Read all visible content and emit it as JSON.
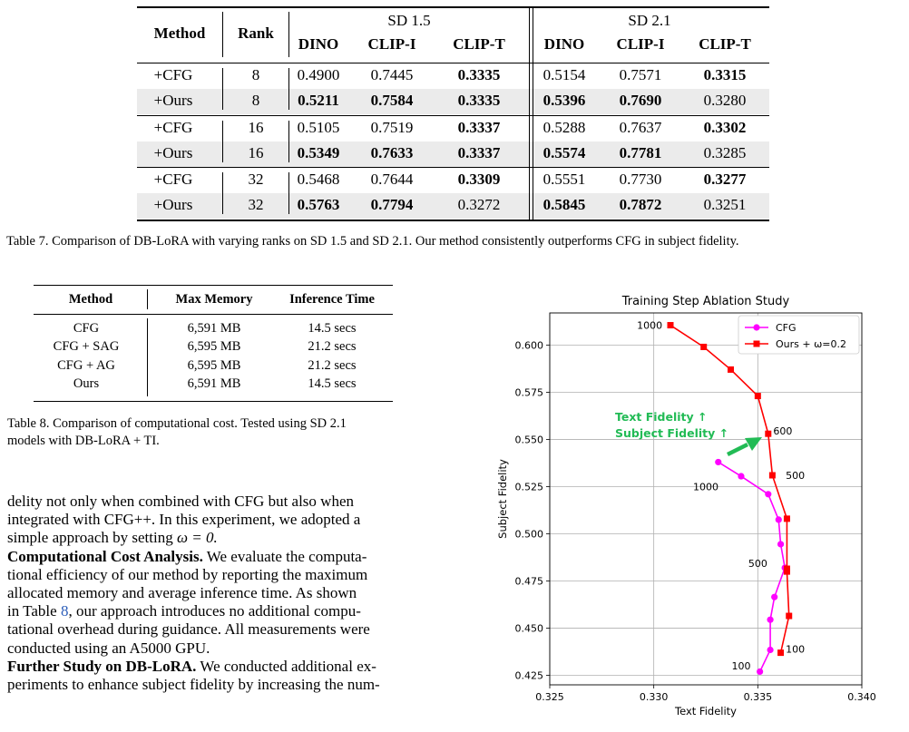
{
  "table7": {
    "headers": {
      "method": "Method",
      "rank": "Rank",
      "group1": "SD 1.5",
      "group2": "SD 2.1",
      "cols": [
        "DINO",
        "CLIP-I",
        "CLIP-T",
        "DINO",
        "CLIP-I",
        "CLIP-T"
      ]
    },
    "rows": [
      {
        "method": "+CFG",
        "rank": "8",
        "vals": [
          "0.4900",
          "0.7445",
          "0.3335",
          "0.5154",
          "0.7571",
          "0.3315"
        ],
        "bold": [
          false,
          false,
          true,
          false,
          false,
          true
        ]
      },
      {
        "method": "+Ours",
        "rank": "8",
        "vals": [
          "0.5211",
          "0.7584",
          "0.3335",
          "0.5396",
          "0.7690",
          "0.3280"
        ],
        "bold": [
          true,
          true,
          true,
          true,
          true,
          false
        ]
      },
      {
        "method": "+CFG",
        "rank": "16",
        "vals": [
          "0.5105",
          "0.7519",
          "0.3337",
          "0.5288",
          "0.7637",
          "0.3302"
        ],
        "bold": [
          false,
          false,
          true,
          false,
          false,
          true
        ]
      },
      {
        "method": "+Ours",
        "rank": "16",
        "vals": [
          "0.5349",
          "0.7633",
          "0.3337",
          "0.5574",
          "0.7781",
          "0.3285"
        ],
        "bold": [
          true,
          true,
          true,
          true,
          true,
          false
        ]
      },
      {
        "method": "+CFG",
        "rank": "32",
        "vals": [
          "0.5468",
          "0.7644",
          "0.3309",
          "0.5551",
          "0.7730",
          "0.3277"
        ],
        "bold": [
          false,
          false,
          true,
          false,
          false,
          true
        ]
      },
      {
        "method": "+Ours",
        "rank": "32",
        "vals": [
          "0.5763",
          "0.7794",
          "0.3272",
          "0.5845",
          "0.7872",
          "0.3251"
        ],
        "bold": [
          true,
          true,
          false,
          true,
          true,
          false
        ]
      }
    ],
    "caption": "Table 7. Comparison of DB-LoRA with varying ranks on SD 1.5 and SD 2.1. Our method consistently outperforms CFG in subject fidelity."
  },
  "table8": {
    "headers": [
      "Method",
      "Max Memory",
      "Inference Time"
    ],
    "rows": [
      [
        "CFG",
        "6,591 MB",
        "14.5 secs"
      ],
      [
        "CFG + SAG",
        "6,595 MB",
        "21.2 secs"
      ],
      [
        "CFG + AG",
        "6,595 MB",
        "21.2 secs"
      ],
      [
        "Ours",
        "6,591 MB",
        "14.5 secs"
      ]
    ],
    "caption_line1": "Table 8. Comparison of computational cost. Tested using SD 2.1",
    "caption_line2": "models with DB-LoRA + TI."
  },
  "body": {
    "p1_line1": "delity not only when combined with CFG but also when",
    "p1_line2": "integrated with CFG++. In this experiment, we adopted a",
    "p1_line3_a": "simple approach by setting ",
    "p1_line3_math": "ω = 0.",
    "p2_runin": "Computational Cost Analysis.",
    "p2_line1_rest": " We evaluate the computa-",
    "p2_line2": "tional efficiency of our method by reporting the maximum",
    "p2_line3": "allocated memory and average inference time. As shown",
    "p2_line4_a": "in Table ",
    "p2_line4_ref": "8",
    "p2_line4_b": ", our approach introduces no additional compu-",
    "p2_line5": "tational overhead during guidance. All measurements were",
    "p2_line6": "conducted using an A5000 GPU.",
    "p3_runin": "Further Study on DB-LoRA.",
    "p3_line1_rest": " We conducted additional ex-",
    "p3_line2": "periments to enhance subject fidelity by increasing the num-"
  },
  "chart_data": {
    "type": "line",
    "title": "Training Step Ablation Study",
    "xlabel": "Text Fidelity",
    "ylabel": "Subject Fidelity",
    "xlim": [
      0.325,
      0.34
    ],
    "ylim": [
      0.42,
      0.617
    ],
    "xticks": [
      "0.325",
      "0.330",
      "0.335",
      "0.340"
    ],
    "xtick_values": [
      0.325,
      0.33,
      0.335,
      0.34
    ],
    "yticks": [
      "0.425",
      "0.450",
      "0.475",
      "0.500",
      "0.525",
      "0.550",
      "0.575",
      "0.600"
    ],
    "ytick_values": [
      0.425,
      0.45,
      0.475,
      0.5,
      0.525,
      0.55,
      0.575,
      0.6
    ],
    "grid": true,
    "legend_position": "top-right",
    "series": [
      {
        "name": "CFG",
        "color": "#ff00ff",
        "marker": "circle",
        "points": [
          [
            0.3351,
            0.427
          ],
          [
            0.3356,
            0.4385
          ],
          [
            0.3356,
            0.4545
          ],
          [
            0.3358,
            0.4665
          ],
          [
            0.3363,
            0.482
          ],
          [
            0.3361,
            0.4945
          ],
          [
            0.336,
            0.5075
          ],
          [
            0.3355,
            0.521
          ],
          [
            0.3342,
            0.5305
          ],
          [
            0.3331,
            0.538
          ]
        ]
      },
      {
        "name": "Ours + ω=0.2",
        "color": "#ff0000",
        "marker": "square",
        "points": [
          [
            0.3361,
            0.437
          ],
          [
            0.3365,
            0.4565
          ],
          [
            0.3364,
            0.48
          ],
          [
            0.3364,
            0.4815
          ],
          [
            0.3364,
            0.508
          ],
          [
            0.3357,
            0.531
          ],
          [
            0.3355,
            0.553
          ],
          [
            0.335,
            0.573
          ],
          [
            0.3337,
            0.587
          ],
          [
            0.3324,
            0.599
          ],
          [
            0.3308,
            0.6105
          ]
        ]
      }
    ],
    "annotations": [
      {
        "text": "1000",
        "x": 0.3298,
        "y": 0.6105
      },
      {
        "text": "600",
        "x": 0.3362,
        "y": 0.5545
      },
      {
        "text": "1000",
        "x": 0.3325,
        "y": 0.525
      },
      {
        "text": "500",
        "x": 0.3368,
        "y": 0.531
      },
      {
        "text": "500",
        "x": 0.335,
        "y": 0.4845
      },
      {
        "text": "100",
        "x": 0.3368,
        "y": 0.439
      },
      {
        "text": "100",
        "x": 0.3342,
        "y": 0.43
      }
    ],
    "callout": {
      "line1": "Text Fidelity ↑",
      "line2": "Subject Fidelity ↑",
      "color": "#22bb55"
    }
  }
}
